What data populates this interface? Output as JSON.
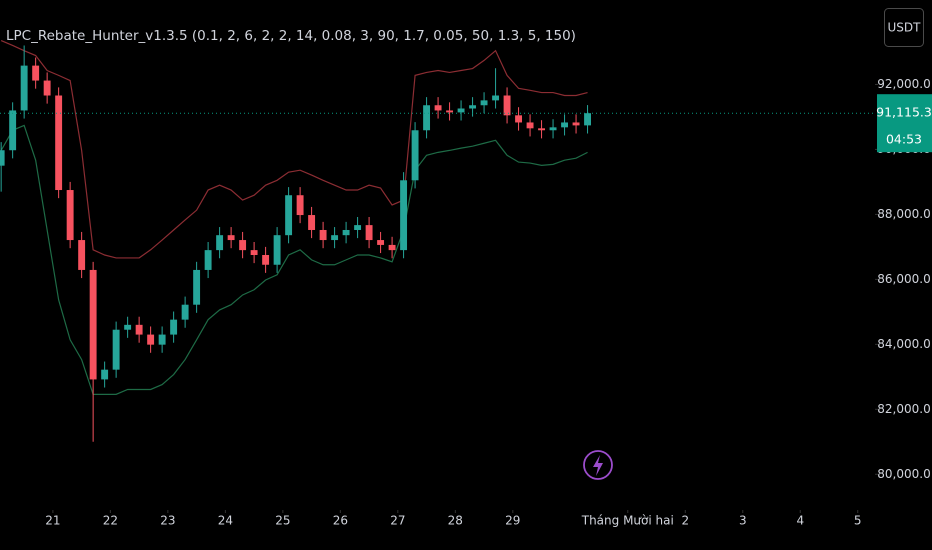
{
  "chart_data": {
    "type": "candlestick",
    "title": "LPC_Rebate_Hunter_v1.3.5 (0.1, 2, 6, 2, 2, 14, 0.08, 3, 90, 1.7, 0.05, 50, 1.3, 5, 150)",
    "currency_button": "USDT",
    "up_color": "#26a69a",
    "down_color": "#f7525f",
    "xlim": [
      -0.92,
      14.3
    ],
    "ylim": [
      78900,
      94600
    ],
    "xticks": [
      {
        "value": 0,
        "label": "21"
      },
      {
        "value": 1,
        "label": "22"
      },
      {
        "value": 2,
        "label": "23"
      },
      {
        "value": 3,
        "label": "24"
      },
      {
        "value": 4,
        "label": "25"
      },
      {
        "value": 5,
        "label": "26"
      },
      {
        "value": 6,
        "label": "27"
      },
      {
        "value": 7,
        "label": "28"
      },
      {
        "value": 8,
        "label": "29"
      },
      {
        "value": 10,
        "label": "Tháng Mười hai"
      },
      {
        "value": 11,
        "label": "2"
      },
      {
        "value": 12,
        "label": "3"
      },
      {
        "value": 13,
        "label": "4"
      },
      {
        "value": 14,
        "label": "5"
      }
    ],
    "yticks": [
      {
        "value": 92000,
        "label": "92,000.0"
      },
      {
        "value": 90000,
        "label": "90,000.0"
      },
      {
        "value": 88000,
        "label": "88,000.0"
      },
      {
        "value": 86000,
        "label": "86,000.0"
      },
      {
        "value": 84000,
        "label": "84,000.0"
      },
      {
        "value": 82000,
        "label": "82,000.0"
      },
      {
        "value": 80000,
        "label": "80,000.0"
      }
    ],
    "last_price": {
      "value": 91115.3,
      "label": "91,115.3"
    },
    "countdown": "04:53",
    "last_price_color": "#089981",
    "candles": {
      "x": [
        -0.9,
        -0.7,
        -0.5,
        -0.3,
        -0.1,
        0.1,
        0.3,
        0.5,
        0.7,
        0.9,
        1.1,
        1.3,
        1.5,
        1.7,
        1.9,
        2.1,
        2.3,
        2.5,
        2.7,
        2.9,
        3.1,
        3.3,
        3.5,
        3.7,
        3.9,
        4.1,
        4.3,
        4.5,
        4.7,
        4.9,
        5.1,
        5.3,
        5.5,
        5.7,
        5.9,
        6.1,
        6.3,
        6.5,
        6.7,
        6.9,
        7.1,
        7.3,
        7.5,
        7.7,
        7.9,
        8.1,
        8.3,
        8.5,
        8.7,
        8.9,
        9.1,
        9.3
      ],
      "open": [
        89500,
        89975,
        91200,
        92580,
        92120,
        91660,
        88750,
        87210,
        86290,
        82920,
        83220,
        84450,
        84600,
        84300,
        83990,
        84300,
        84760,
        85220,
        86290,
        86900,
        87360,
        87210,
        86900,
        86750,
        86450,
        87360,
        88590,
        87980,
        87520,
        87210,
        87360,
        87520,
        87670,
        87210,
        87060,
        86900,
        89050,
        90590,
        91360,
        91200,
        91140,
        91260,
        91360,
        91510,
        91660,
        91050,
        90830,
        90650,
        90590,
        90680,
        90830,
        90740
      ],
      "high": [
        90225,
        91450,
        93200,
        92830,
        92370,
        91910,
        89000,
        87460,
        86540,
        83470,
        84700,
        84850,
        84850,
        84550,
        84550,
        85010,
        85470,
        86540,
        87150,
        87610,
        87610,
        87460,
        87150,
        87000,
        87610,
        88840,
        88840,
        88230,
        87770,
        87610,
        87770,
        87920,
        87920,
        87460,
        87310,
        89300,
        90840,
        91610,
        91610,
        91450,
        91510,
        91610,
        91760,
        92500,
        91910,
        91300,
        91080,
        90900,
        90930,
        91080,
        91080,
        91365
      ],
      "low": [
        88700,
        89725,
        90950,
        91870,
        91410,
        88500,
        86960,
        86040,
        81000,
        82670,
        82970,
        84200,
        84050,
        83740,
        83740,
        84050,
        84510,
        84970,
        86040,
        86650,
        86960,
        86650,
        86500,
        86200,
        86200,
        87110,
        87730,
        87270,
        86960,
        86960,
        87110,
        87270,
        86960,
        86810,
        86650,
        86650,
        88800,
        90340,
        90950,
        90890,
        90890,
        91010,
        91110,
        91260,
        90800,
        90580,
        90400,
        90340,
        90340,
        90430,
        90490,
        90490
      ],
      "close": [
        89975,
        91200,
        92580,
        92120,
        91660,
        88750,
        87210,
        86290,
        82920,
        83220,
        84450,
        84600,
        84300,
        83990,
        84300,
        84760,
        85220,
        86290,
        86900,
        87360,
        87210,
        86900,
        86750,
        86450,
        87360,
        88590,
        87980,
        87520,
        87210,
        87360,
        87520,
        87670,
        87210,
        87060,
        86900,
        89050,
        90590,
        91360,
        91200,
        91140,
        91260,
        91360,
        91510,
        91660,
        91050,
        90830,
        90650,
        90590,
        90680,
        90830,
        90740,
        91115
      ]
    },
    "bands": [
      {
        "color": "#8c2d33",
        "values": [
          93350,
          93200,
          93040,
          92890,
          92430,
          92280,
          92120,
          89970,
          86910,
          86750,
          86660,
          86660,
          86660,
          86910,
          87210,
          87520,
          87830,
          88130,
          88750,
          88900,
          88750,
          88440,
          88590,
          88900,
          89050,
          89300,
          89360,
          89210,
          89050,
          88900,
          88750,
          88750,
          88900,
          88810,
          88290,
          88440,
          92280,
          92370,
          92430,
          92370,
          92430,
          92490,
          92740,
          93040,
          92280,
          91880,
          91820,
          91750,
          91750,
          91660,
          91660,
          91750
        ]
      },
      {
        "color": "#1e6b46",
        "values": [
          89970,
          90590,
          90740,
          89670,
          87520,
          85370,
          84140,
          83530,
          82460,
          82460,
          82460,
          82610,
          82610,
          82610,
          82760,
          83070,
          83530,
          84140,
          84760,
          85060,
          85220,
          85520,
          85680,
          85980,
          86140,
          86750,
          86910,
          86600,
          86450,
          86450,
          86600,
          86750,
          86750,
          86660,
          86540,
          87520,
          89360,
          89820,
          89910,
          89970,
          90040,
          90100,
          90190,
          90280,
          89820,
          89610,
          89580,
          89510,
          89540,
          89670,
          89730,
          89910
        ]
      }
    ]
  }
}
